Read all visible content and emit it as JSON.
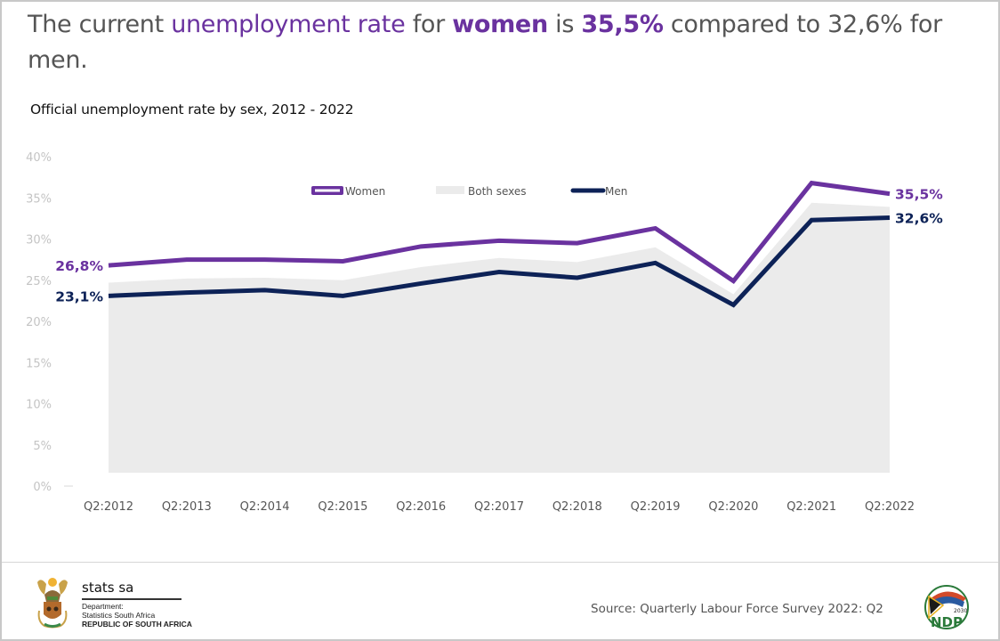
{
  "headline": {
    "part1": "The current ",
    "part2": "unemployment rate",
    "part3": " for ",
    "part4": "women",
    "part5": " is ",
    "part6": "35,5%",
    "part7": " compared to 32,6% for men."
  },
  "colors": {
    "women": "#6a329f",
    "men": "#0d2257",
    "both": "#ebebeb",
    "text": "#555555",
    "tick": "#c4c4c4"
  },
  "chart_data": {
    "type": "line",
    "title": "Official unemployment rate by sex, 2012 - 2022",
    "xlabel": "",
    "ylabel": "",
    "ylim": [
      0,
      40
    ],
    "yticks": [
      "0%",
      "5%",
      "10%",
      "15%",
      "20%",
      "25%",
      "30%",
      "35%",
      "40%"
    ],
    "ytick_values": [
      0,
      5,
      10,
      15,
      20,
      25,
      30,
      35,
      40
    ],
    "grid": false,
    "legend_position": "top-center",
    "categories": [
      "Q2:2012",
      "Q2:2013",
      "Q2:2014",
      "Q2:2015",
      "Q2:2016",
      "Q2:2017",
      "Q2:2018",
      "Q2:2019",
      "Q2:2020",
      "Q2:2021",
      "Q2:2022"
    ],
    "series": [
      {
        "name": "Women",
        "kind": "line",
        "values": [
          26.8,
          27.5,
          27.5,
          27.3,
          29.1,
          29.8,
          29.5,
          31.3,
          24.9,
          36.8,
          35.5
        ]
      },
      {
        "name": "Both sexes",
        "kind": "area",
        "values": [
          24.7,
          25.2,
          25.3,
          25.0,
          26.6,
          27.7,
          27.2,
          29.0,
          23.3,
          34.4,
          33.9
        ]
      },
      {
        "name": "Men",
        "kind": "line",
        "values": [
          23.1,
          23.5,
          23.8,
          23.1,
          24.6,
          26.0,
          25.3,
          27.1,
          22.0,
          32.3,
          32.6
        ]
      }
    ],
    "data_labels": [
      {
        "series": "Women",
        "point": "Q2:2012",
        "text": "26,8%",
        "side": "left"
      },
      {
        "series": "Men",
        "point": "Q2:2012",
        "text": "23,1%",
        "side": "left"
      },
      {
        "series": "Women",
        "point": "Q2:2022",
        "text": "35,5%",
        "side": "right"
      },
      {
        "series": "Men",
        "point": "Q2:2022",
        "text": "32,6%",
        "side": "right"
      }
    ]
  },
  "footer": {
    "org_name": "stats sa",
    "org_line1": "Department:",
    "org_line2": "Statistics South Africa",
    "org_line3": "REPUBLIC OF SOUTH AFRICA",
    "source": "Source: Quarterly Labour Force Survey 2022: Q2",
    "ndp_year": "2030",
    "ndp_text": "NDP"
  }
}
